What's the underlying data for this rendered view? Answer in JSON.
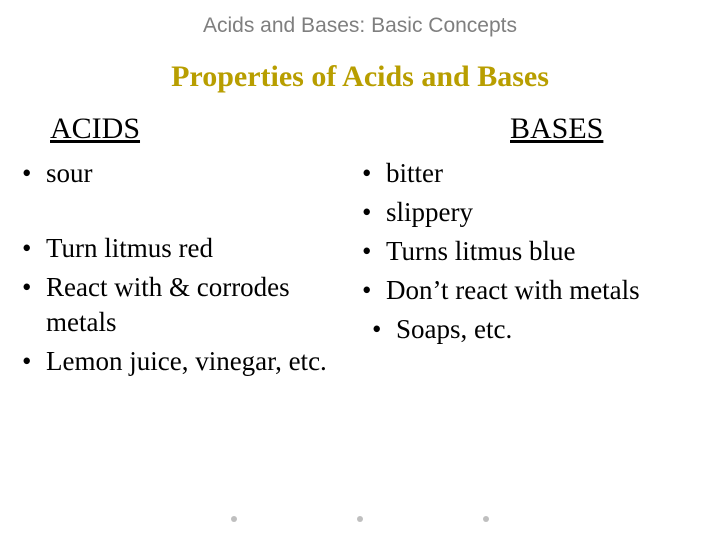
{
  "header": "Acids and Bases: Basic Concepts",
  "subtitle": "Properties of Acids and Bases",
  "left": {
    "heading": "ACIDS",
    "items1": [
      "sour"
    ],
    "items2": [
      "Turn litmus red",
      "React with & corrodes metals",
      "Lemon juice, vinegar, etc."
    ]
  },
  "right": {
    "heading": "BASES",
    "items1": [
      "bitter",
      "slippery"
    ],
    "items2": [
      "Turns litmus blue",
      "Don’t react with metals"
    ],
    "items3": [
      "Soaps, etc."
    ]
  },
  "colors": {
    "header_text": "#7f7f7f",
    "subtitle_text": "#b89e00",
    "body_text": "#000000",
    "background": "#ffffff",
    "dot": "#bfbfbf"
  },
  "typography": {
    "header_family": "Arial",
    "header_size_pt": 16,
    "subtitle_family": "Times New Roman",
    "subtitle_size_pt": 23,
    "subtitle_weight": "bold",
    "heading_size_pt": 23,
    "body_size_pt": 20
  }
}
